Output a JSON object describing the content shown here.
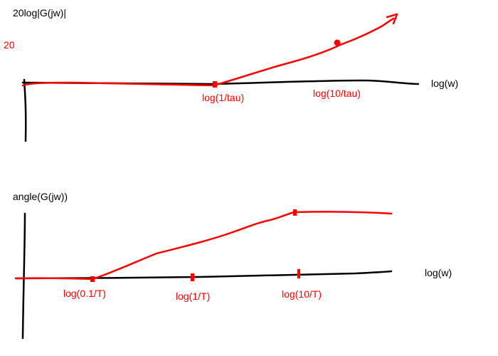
{
  "colors": {
    "axis": "#000000",
    "curve": "#ff0000",
    "background": "#ffffff"
  },
  "magnitude_plot": {
    "ylabel": "20log|G(jw)|",
    "y_tick_label": "20",
    "xlabel": "log(w)",
    "tick_labels": [
      "log(1/tau)",
      "log(10/tau)"
    ]
  },
  "phase_plot": {
    "ylabel": "angle(G(jw))",
    "xlabel": "log(w)",
    "tick_labels": [
      "log(0.1/T)",
      "log(1/T)",
      "log(10/T)"
    ]
  }
}
